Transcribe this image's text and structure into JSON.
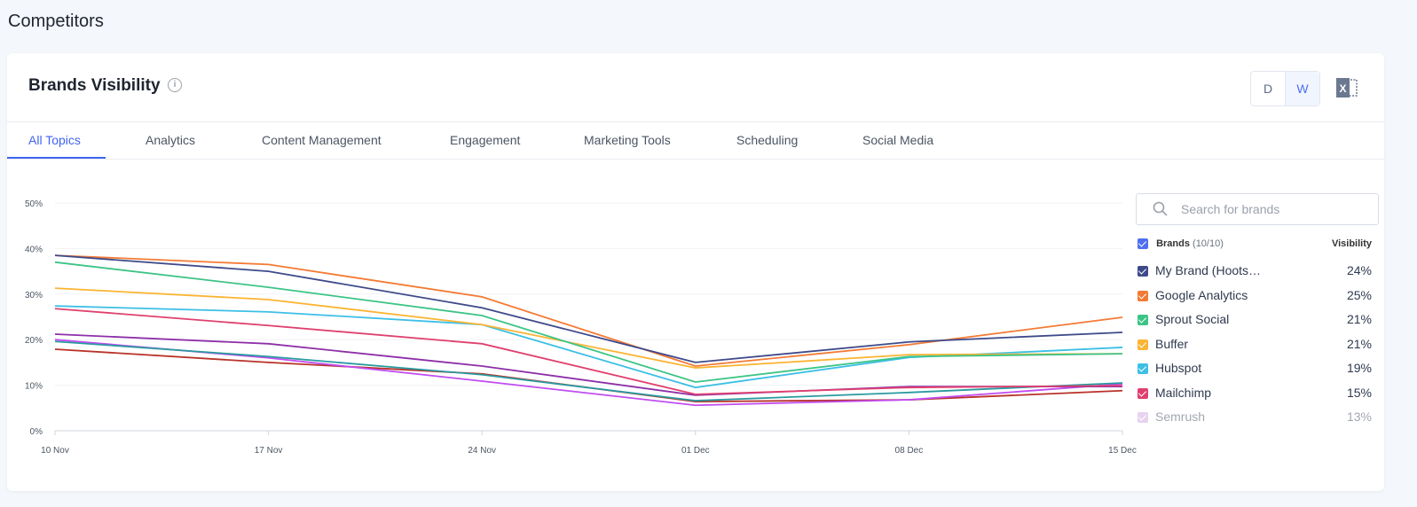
{
  "page_title": "Competitors",
  "card": {
    "title": "Brands Visibility",
    "info_icon": "info-icon",
    "granularity": {
      "options": [
        "D",
        "W"
      ],
      "selected": "W"
    },
    "export_icon": "excel-icon"
  },
  "tabs": [
    {
      "label": "All Topics",
      "active": true
    },
    {
      "label": "Analytics"
    },
    {
      "label": "Content Management"
    },
    {
      "label": "Engagement"
    },
    {
      "label": "Marketing Tools"
    },
    {
      "label": "Scheduling"
    },
    {
      "label": "Social Media"
    }
  ],
  "search": {
    "placeholder": "Search for brands",
    "value": ""
  },
  "legend": {
    "header": "Brands",
    "count": "(10/10)",
    "value_header": "Visibility",
    "items": [
      {
        "name": "My Brand (Hoots…",
        "value": "24%",
        "color": "#3e4a8a"
      },
      {
        "name": "Google Analytics",
        "value": "25%",
        "color": "#f47a34"
      },
      {
        "name": "Sprout Social",
        "value": "21%",
        "color": "#3cc486"
      },
      {
        "name": "Buffer",
        "value": "21%",
        "color": "#fbb433"
      },
      {
        "name": "Hubspot",
        "value": "19%",
        "color": "#3cbfe6"
      },
      {
        "name": "Mailchimp",
        "value": "15%",
        "color": "#e0406e"
      },
      {
        "name": "Semrush",
        "value": "13%",
        "color": "#c99ee0",
        "faded": true
      }
    ]
  },
  "chart_data": {
    "type": "line",
    "x": [
      "10 Nov",
      "17 Nov",
      "24 Nov",
      "01 Dec",
      "08 Dec",
      "15 Dec"
    ],
    "yticks": [
      "0%",
      "10%",
      "20%",
      "30%",
      "40%",
      "50%"
    ],
    "ylim": [
      0,
      50
    ],
    "grid": true,
    "series": [
      {
        "name": "My Brand (Hoots…",
        "color": "#3e4a8a",
        "values": [
          38.5,
          35,
          27,
          15,
          19.5,
          21.6
        ]
      },
      {
        "name": "Google Analytics",
        "color": "#f47a34",
        "values": [
          38.5,
          36.5,
          29.4,
          14.2,
          18.9,
          24.9
        ]
      },
      {
        "name": "Sprout Social",
        "color": "#3cc486",
        "values": [
          37,
          31.5,
          25.3,
          10.7,
          16.3,
          16.9
        ]
      },
      {
        "name": "Buffer",
        "color": "#fbb433",
        "values": [
          31.3,
          28.8,
          23.3,
          13.8,
          16.7,
          16.9
        ]
      },
      {
        "name": "Hubspot",
        "color": "#3cbfe6",
        "values": [
          27.4,
          26.1,
          23.3,
          9.5,
          16.1,
          18.3
        ]
      },
      {
        "name": "Mailchimp",
        "color": "#e0406e",
        "values": [
          26.8,
          23.1,
          19.1,
          8,
          9.5,
          9.9
        ]
      },
      {
        "color": "#8e2fa8",
        "values": [
          21.2,
          19.1,
          14.2,
          7.8,
          9.7,
          9.7
        ]
      },
      {
        "color": "#2a9aa0",
        "values": [
          19.6,
          16.3,
          12.3,
          6.6,
          8.4,
          10.5
        ]
      },
      {
        "color": "#c04cf0",
        "values": [
          20,
          16,
          10.9,
          5.6,
          6.8,
          10.3
        ]
      },
      {
        "color": "#b83228",
        "values": [
          17.9,
          15,
          12.5,
          6.4,
          6.8,
          8.8
        ]
      }
    ]
  }
}
